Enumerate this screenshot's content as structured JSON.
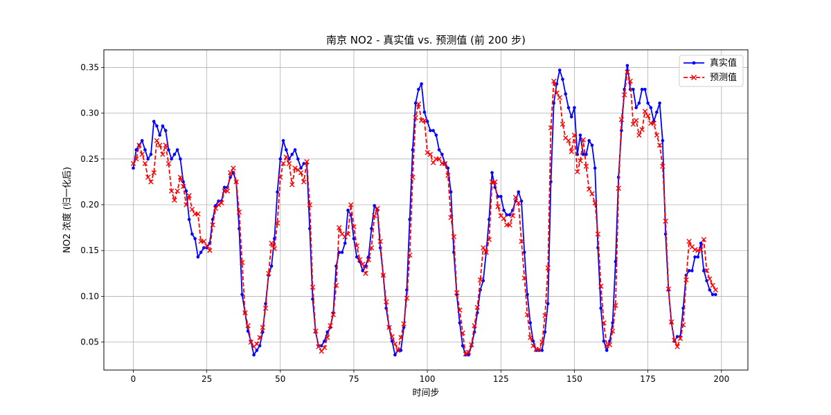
{
  "chart_data": {
    "type": "line",
    "title": "南京 NO2 - 真实值 vs. 预测值 (前 200 步)",
    "xlabel": "时间步",
    "ylabel": "NO2 浓度 (归一化后)",
    "xlim": [
      -10,
      209
    ],
    "ylim": [
      0.0195,
      0.3692
    ],
    "xticks": [
      0,
      25,
      50,
      75,
      100,
      125,
      150,
      175,
      200
    ],
    "yticks": [
      0.05,
      0.1,
      0.15,
      0.2,
      0.25,
      0.3,
      0.35
    ],
    "ytick_labels": [
      "0.05",
      "0.10",
      "0.15",
      "0.20",
      "0.25",
      "0.30",
      "0.35"
    ],
    "grid": true,
    "legend_position": "top-right",
    "series": [
      {
        "name": "真实值",
        "color": "#0000ff",
        "linestyle": "solid",
        "marker": "dot",
        "values": [
          0.24,
          0.26,
          0.265,
          0.27,
          0.26,
          0.25,
          0.255,
          0.291,
          0.286,
          0.276,
          0.286,
          0.281,
          0.26,
          0.25,
          0.255,
          0.26,
          0.25,
          0.225,
          0.215,
          0.184,
          0.168,
          0.163,
          0.143,
          0.148,
          0.153,
          0.153,
          0.158,
          0.184,
          0.199,
          0.204,
          0.204,
          0.219,
          0.219,
          0.23,
          0.235,
          0.225,
          0.174,
          0.102,
          0.082,
          0.062,
          0.051,
          0.036,
          0.041,
          0.046,
          0.061,
          0.092,
          0.123,
          0.133,
          0.163,
          0.214,
          0.25,
          0.27,
          0.26,
          0.25,
          0.255,
          0.26,
          0.25,
          0.24,
          0.245,
          0.245,
          0.174,
          0.097,
          0.061,
          0.046,
          0.046,
          0.051,
          0.061,
          0.066,
          0.082,
          0.133,
          0.148,
          0.148,
          0.158,
          0.194,
          0.189,
          0.163,
          0.143,
          0.138,
          0.128,
          0.133,
          0.143,
          0.174,
          0.199,
          0.194,
          0.153,
          0.123,
          0.087,
          0.066,
          0.051,
          0.036,
          0.041,
          0.041,
          0.066,
          0.107,
          0.184,
          0.26,
          0.311,
          0.326,
          0.332,
          0.301,
          0.291,
          0.281,
          0.281,
          0.276,
          0.26,
          0.255,
          0.245,
          0.24,
          0.214,
          0.148,
          0.102,
          0.071,
          0.046,
          0.036,
          0.036,
          0.046,
          0.061,
          0.082,
          0.107,
          0.117,
          0.148,
          0.184,
          0.235,
          0.219,
          0.209,
          0.209,
          0.194,
          0.189,
          0.189,
          0.194,
          0.204,
          0.214,
          0.204,
          0.148,
          0.102,
          0.071,
          0.051,
          0.041,
          0.041,
          0.041,
          0.061,
          0.092,
          0.225,
          0.311,
          0.332,
          0.347,
          0.337,
          0.321,
          0.306,
          0.296,
          0.306,
          0.255,
          0.276,
          0.255,
          0.255,
          0.27,
          0.265,
          0.24,
          0.153,
          0.087,
          0.051,
          0.041,
          0.051,
          0.071,
          0.138,
          0.23,
          0.281,
          0.326,
          0.352,
          0.326,
          0.326,
          0.306,
          0.311,
          0.326,
          0.326,
          0.311,
          0.306,
          0.291,
          0.301,
          0.311,
          0.27,
          0.168,
          0.107,
          0.071,
          0.051,
          0.056,
          0.056,
          0.087,
          0.123,
          0.128,
          0.128,
          0.143,
          0.143,
          0.158,
          0.128,
          0.117,
          0.107,
          0.102,
          0.102
        ]
      },
      {
        "name": "预测值",
        "color": "#ff0000",
        "linestyle": "dashed",
        "marker": "x",
        "values": [
          0.245,
          0.25,
          0.265,
          0.255,
          0.245,
          0.23,
          0.225,
          0.235,
          0.27,
          0.265,
          0.255,
          0.265,
          0.245,
          0.215,
          0.205,
          0.215,
          0.23,
          0.22,
          0.2,
          0.21,
          0.195,
          0.19,
          0.19,
          0.16,
          0.16,
          0.155,
          0.15,
          0.178,
          0.196,
          0.2,
          0.202,
          0.215,
          0.215,
          0.235,
          0.24,
          0.225,
          0.192,
          0.137,
          0.082,
          0.068,
          0.05,
          0.045,
          0.048,
          0.055,
          0.066,
          0.087,
          0.125,
          0.158,
          0.152,
          0.18,
          0.23,
          0.245,
          0.252,
          0.245,
          0.222,
          0.24,
          0.238,
          0.235,
          0.225,
          0.247,
          0.2,
          0.11,
          0.062,
          0.045,
          0.04,
          0.044,
          0.055,
          0.068,
          0.08,
          0.112,
          0.175,
          0.168,
          0.165,
          0.168,
          0.2,
          0.176,
          0.155,
          0.14,
          0.135,
          0.125,
          0.14,
          0.153,
          0.188,
          0.196,
          0.16,
          0.123,
          0.094,
          0.066,
          0.056,
          0.048,
          0.041,
          0.055,
          0.07,
          0.098,
          0.145,
          0.23,
          0.295,
          0.31,
          0.292,
          0.292,
          0.257,
          0.255,
          0.246,
          0.25,
          0.25,
          0.245,
          0.245,
          0.232,
          0.186,
          0.165,
          0.104,
          0.085,
          0.06,
          0.037,
          0.039,
          0.047,
          0.068,
          0.088,
          0.118,
          0.153,
          0.148,
          0.162,
          0.225,
          0.225,
          0.198,
          0.188,
          0.185,
          0.178,
          0.178,
          0.188,
          0.208,
          0.202,
          0.16,
          0.12,
          0.08,
          0.055,
          0.046,
          0.042,
          0.042,
          0.05,
          0.079,
          0.131,
          0.284,
          0.335,
          0.322,
          0.317,
          0.288,
          0.273,
          0.27,
          0.258,
          0.276,
          0.236,
          0.248,
          0.271,
          0.242,
          0.217,
          0.212,
          0.202,
          0.168,
          0.111,
          0.071,
          0.046,
          0.047,
          0.062,
          0.09,
          0.218,
          0.293,
          0.32,
          0.345,
          0.335,
          0.288,
          0.292,
          0.276,
          0.282,
          0.302,
          0.297,
          0.289,
          0.289,
          0.276,
          0.265,
          0.242,
          0.182,
          0.108,
          0.072,
          0.052,
          0.045,
          0.054,
          0.069,
          0.118,
          0.16,
          0.154,
          0.151,
          0.15,
          0.151,
          0.162,
          0.128,
          0.119,
          0.112,
          0.107
        ]
      }
    ]
  }
}
